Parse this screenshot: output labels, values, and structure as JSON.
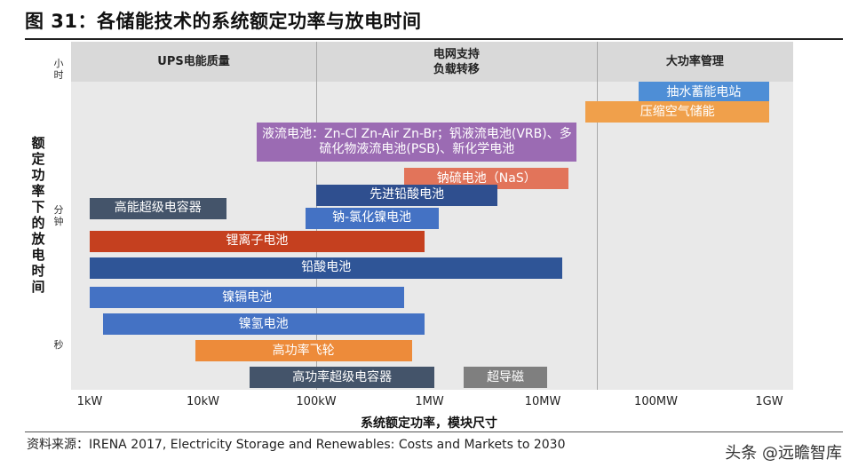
{
  "figure": {
    "title": "图 31：各储能技术的系统额定功率与放电时间",
    "source": "资料来源：IRENA 2017, Electricity Storage and Renewables: Costs and Markets to 2030",
    "watermark": "头条 @远瞻智库"
  },
  "chart_data": {
    "type": "bar",
    "subtype": "floating-range",
    "x_scale": "log",
    "xlabel": "系统额定功率，模块尺寸",
    "ylabel": "额定功率下的放电时间",
    "x_ticks": [
      {
        "label": "1kW",
        "value": 1000
      },
      {
        "label": "10kW",
        "value": 10000
      },
      {
        "label": "100kW",
        "value": 100000
      },
      {
        "label": "1MW",
        "value": 1000000
      },
      {
        "label": "10MW",
        "value": 10000000
      },
      {
        "label": "100MW",
        "value": 100000000
      },
      {
        "label": "1GW",
        "value": 1000000000
      }
    ],
    "y_ticks": [
      {
        "label": "小时",
        "level": 0.92
      },
      {
        "label": "分钟",
        "level": 0.5
      },
      {
        "label": "秒",
        "level": 0.13
      }
    ],
    "regions": [
      {
        "label": "UPS电能质量",
        "from": 1000,
        "to": 100000
      },
      {
        "label": "电网支持\n负载转移",
        "from": 100000,
        "to": 30000000
      },
      {
        "label": "大功率管理",
        "from": 30000000,
        "to": 1000000000
      }
    ],
    "series": [
      {
        "name": "抽水蓄能电站",
        "min_power_w": 70000000,
        "max_power_w": 1000000000,
        "discharge_level": 0.9,
        "color": "#4e8ed6"
      },
      {
        "name": "压缩空气储能",
        "min_power_w": 24000000,
        "max_power_w": 1000000000,
        "discharge_level": 0.84,
        "color": "#f0a04b"
      },
      {
        "name": "液流电池：Zn-Cl Zn-Air Zn-Br；钒液流电池(VRB)、多\n硫化物液流电池(PSB)、新化学电池",
        "min_power_w": 30000,
        "max_power_w": 20000000,
        "discharge_level": 0.75,
        "color": "#9b6bb3"
      },
      {
        "name": "钠硫电池（NaS）",
        "min_power_w": 600000,
        "max_power_w": 17000000,
        "discharge_level": 0.64,
        "color": "#e2745a"
      },
      {
        "name": "先进铅酸电池",
        "min_power_w": 100000,
        "max_power_w": 4000000,
        "discharge_level": 0.59,
        "color": "#2f4f8f"
      },
      {
        "name": "高能超级电容器",
        "min_power_w": 1000,
        "max_power_w": 16000,
        "discharge_level": 0.55,
        "color": "#44546a"
      },
      {
        "name": "钠-氯化镍电池",
        "min_power_w": 80000,
        "max_power_w": 1200000,
        "discharge_level": 0.52,
        "color": "#4472c4"
      },
      {
        "name": "锂离子电池",
        "min_power_w": 1000,
        "max_power_w": 900000,
        "discharge_level": 0.45,
        "color": "#c5401f"
      },
      {
        "name": "铅酸电池",
        "min_power_w": 1000,
        "max_power_w": 15000000,
        "discharge_level": 0.37,
        "color": "#2f5597"
      },
      {
        "name": "镍镉电池",
        "min_power_w": 1000,
        "max_power_w": 600000,
        "discharge_level": 0.28,
        "color": "#4472c4"
      },
      {
        "name": "镍氢电池",
        "min_power_w": 1300,
        "max_power_w": 900000,
        "discharge_level": 0.2,
        "color": "#4472c4"
      },
      {
        "name": "高功率飞轮",
        "min_power_w": 8500,
        "max_power_w": 700000,
        "discharge_level": 0.12,
        "color": "#ed8b3a"
      },
      {
        "name": "高功率超级电容器",
        "min_power_w": 26000,
        "max_power_w": 1100000,
        "discharge_level": 0.04,
        "color": "#44546a"
      },
      {
        "name": "超导磁",
        "min_power_w": 2000000,
        "max_power_w": 11000000,
        "discharge_level": 0.04,
        "color": "#7f7f7f"
      }
    ]
  }
}
